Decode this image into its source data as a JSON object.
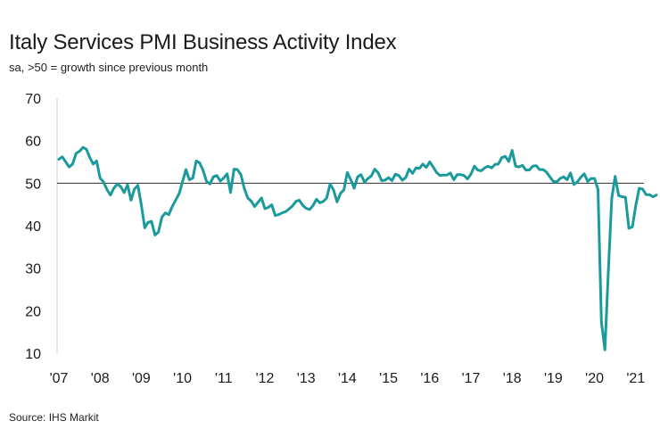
{
  "chart_data": {
    "type": "line",
    "title": "Italy Services PMI Business Activity Index",
    "subtitle": "sa, >50 = growth since previous month",
    "source": "Source: IHS Markit",
    "xlabel": "",
    "ylabel": "",
    "ylim": [
      10,
      70
    ],
    "yticks": [
      10,
      20,
      30,
      40,
      50,
      60,
      70
    ],
    "reference_line": 50,
    "x_tick_labels": [
      "'07",
      "'08",
      "'09",
      "'10",
      "'11",
      "'12",
      "'13",
      "'14",
      "'15",
      "'16",
      "'17",
      "'18",
      "'19",
      "'20",
      "'21"
    ],
    "x_start_year": 2007,
    "x_start_month": 1,
    "x_end_year": 2021,
    "x_end_month": 7,
    "line_color": "#1b9a9c",
    "series": [
      {
        "name": "Italy Services PMI Business Activity Index",
        "values": [
          55.6,
          56.2,
          55.0,
          53.8,
          54.5,
          57.0,
          57.5,
          58.4,
          58.0,
          56.0,
          54.5,
          55.2,
          51.2,
          50.3,
          48.5,
          47.2,
          48.8,
          49.8,
          49.2,
          47.8,
          49.6,
          46.0,
          48.6,
          49.5,
          45.0,
          39.5,
          40.8,
          41.0,
          37.8,
          38.5,
          42.0,
          43.0,
          42.6,
          44.5,
          46.0,
          47.5,
          50.3,
          53.2,
          50.8,
          51.2,
          55.2,
          54.8,
          53.0,
          50.4,
          49.8,
          51.5,
          51.8,
          50.5,
          51.2,
          52.2,
          47.8,
          53.3,
          53.2,
          52.0,
          48.8,
          46.5,
          45.8,
          44.5,
          45.5,
          46.5,
          44.0,
          44.3,
          44.9,
          42.4,
          42.6,
          43.0,
          43.3,
          43.9,
          44.6,
          45.7,
          46.0,
          44.8,
          44.1,
          43.8,
          44.7,
          46.2,
          45.4,
          45.7,
          46.5,
          49.8,
          48.4,
          45.6,
          47.6,
          48.4,
          52.5,
          50.8,
          48.8,
          51.5,
          52.0,
          50.2,
          51.1,
          51.7,
          53.3,
          52.4,
          50.6,
          50.7,
          51.3,
          50.6,
          52.1,
          51.8,
          50.7,
          51.3,
          53.3,
          52.3,
          53.6,
          53.5,
          54.5,
          53.7,
          55.0,
          53.8,
          52.5,
          51.8,
          51.9,
          51.9,
          52.4,
          50.8,
          52.0,
          52.0,
          51.8,
          51.0,
          52.1,
          54.0,
          53.1,
          52.9,
          53.6,
          54.0,
          53.6,
          54.4,
          54.5,
          56.0,
          56.3,
          55.1,
          57.7,
          54.0,
          53.8,
          54.2,
          53.1,
          53.1,
          54.0,
          54.1,
          53.2,
          53.2,
          52.6,
          51.5,
          50.4,
          50.3,
          51.1,
          51.5,
          50.8,
          52.4,
          49.7,
          50.3,
          51.4,
          52.2,
          50.4,
          51.1,
          51.1,
          48.5,
          17.4,
          10.8,
          28.9,
          46.4,
          51.6,
          47.1,
          46.8,
          46.7,
          39.4,
          39.7,
          44.7,
          48.8,
          48.6,
          47.3,
          47.3,
          46.8,
          47.2
        ]
      }
    ]
  }
}
